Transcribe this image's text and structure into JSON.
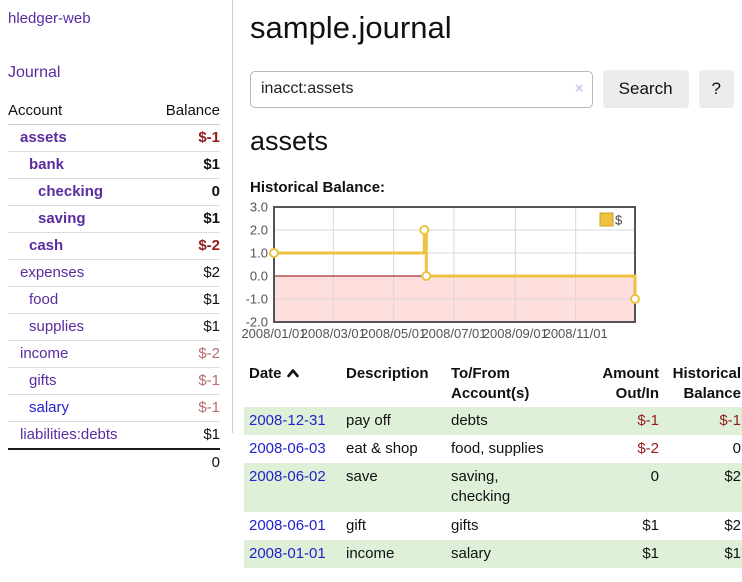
{
  "brand": "hledger-web",
  "sidebar": {
    "journal_link": "Journal",
    "account_table": {
      "col_account": "Account",
      "col_balance": "Balance",
      "accounts": [
        {
          "name": "assets",
          "balance": "$-1"
        },
        {
          "name": "bank",
          "balance": "$1"
        },
        {
          "name": "checking",
          "balance": "0"
        },
        {
          "name": "saving",
          "balance": "$1"
        },
        {
          "name": "cash",
          "balance": "$-2"
        },
        {
          "name": "expenses",
          "balance": "$2"
        },
        {
          "name": "food",
          "balance": "$1"
        },
        {
          "name": "supplies",
          "balance": "$1"
        },
        {
          "name": "income",
          "balance": "$-2"
        },
        {
          "name": "gifts",
          "balance": "$-1"
        },
        {
          "name": "salary",
          "balance": "$-1"
        },
        {
          "name": "liabilities:debts",
          "balance": "$1"
        }
      ],
      "total": "0"
    }
  },
  "main": {
    "title": "sample.journal",
    "search": {
      "value": "inacct:assets",
      "clear_icon": "×",
      "search_button": "Search",
      "help_button": "?"
    },
    "account_heading": "assets",
    "chart_heading": "Historical Balance:"
  },
  "chart_data": {
    "type": "line",
    "title": "Historical Balance",
    "series": [
      {
        "name": "$",
        "color": "#edc240",
        "step": true,
        "points": [
          [
            "2008-01-01",
            1
          ],
          [
            "2008-06-01",
            2
          ],
          [
            "2008-06-03",
            0
          ],
          [
            "2008-12-31",
            -1
          ]
        ]
      }
    ],
    "x_ticks": [
      "2008/01/01",
      "2008/03/01",
      "2008/05/01",
      "2008/07/01",
      "2008/09/01",
      "2008/11/01"
    ],
    "y_ticks": [
      3.0,
      2.0,
      1.0,
      0.0,
      -1.0,
      -2.0
    ],
    "xlim": [
      "2008-01-01",
      "2008-12-31"
    ],
    "ylim": [
      -2,
      3
    ],
    "legend": {
      "label": "$",
      "position": "top-right"
    },
    "grid": true,
    "negative_region_color": "#ffdede",
    "zero_line_color": "#8b0000",
    "axis_label_color": "#545454",
    "border_color": "#545454",
    "grid_color": "#d8d8d8"
  },
  "register": {
    "columns": {
      "date": "Date",
      "description": "Description",
      "accounts": "To/From Account(s)",
      "amount": "Amount Out/In",
      "balance": "Historical Balance"
    },
    "rows": [
      {
        "date": "2008-12-31",
        "description": "pay off",
        "accounts": "debts",
        "amount": "$-1",
        "balance": "$-1"
      },
      {
        "date": "2008-06-03",
        "description": "eat & shop",
        "accounts": "food, supplies",
        "amount": "$-2",
        "balance": "0"
      },
      {
        "date": "2008-06-02",
        "description": "save",
        "accounts": "saving, checking",
        "amount": "0",
        "balance": "$2"
      },
      {
        "date": "2008-06-01",
        "description": "gift",
        "accounts": "gifts",
        "amount": "$1",
        "balance": "$2"
      },
      {
        "date": "2008-01-01",
        "description": "income",
        "accounts": "salary",
        "amount": "$1",
        "balance": "$1"
      }
    ]
  },
  "colors": {
    "accent_purple": "#5a2ca0",
    "link_blue": "#2222cc",
    "negative_strong": "#941c1c",
    "negative_soft": "#b96c6c",
    "row_stripe_green": "#dff0d8",
    "series_gold": "#edc240"
  }
}
